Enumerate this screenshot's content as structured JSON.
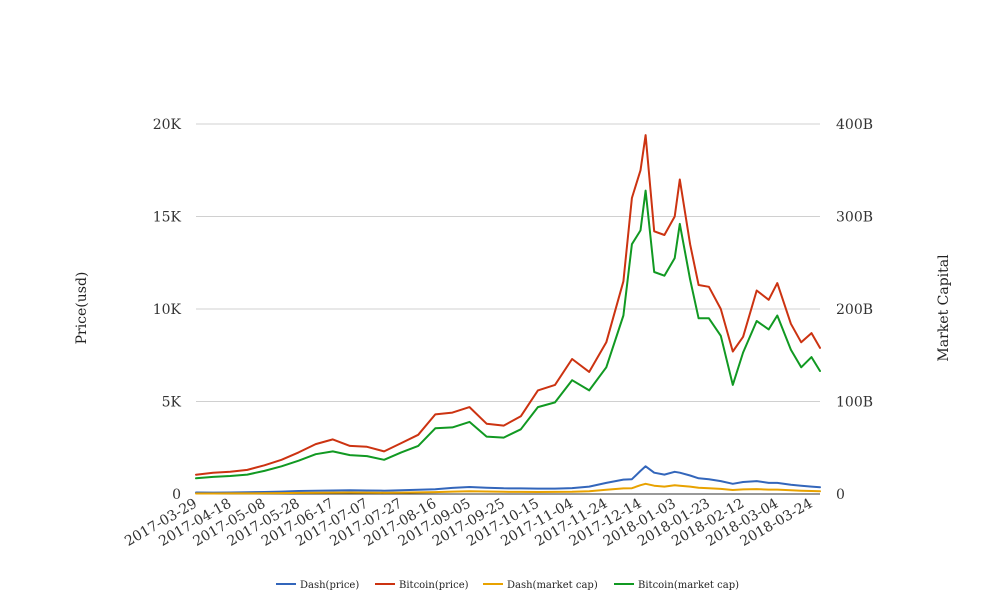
{
  "chart_data": {
    "type": "line",
    "title": "",
    "ylabel": "Price(usd)",
    "y2label": "Market Capital",
    "ylim": [
      0,
      20000
    ],
    "y2lim": [
      0,
      400000000000
    ],
    "yticks": [
      "0",
      "5K",
      "10K",
      "15K",
      "20K"
    ],
    "y2ticks": [
      "0",
      "100B",
      "200B",
      "300B",
      "400B"
    ],
    "xticks": [
      "2017-03-29",
      "2017-04-18",
      "2017-05-08",
      "2017-05-28",
      "2017-06-17",
      "2017-07-07",
      "2017-07-27",
      "2017-08-16",
      "2017-09-05",
      "2017-09-25",
      "2017-10-15",
      "2017-11-04",
      "2017-11-24",
      "2017-12-14",
      "2018-01-03",
      "2018-01-23",
      "2018-02-12",
      "2018-03-04",
      "2018-03-24"
    ],
    "grid": true,
    "legend_position": "bottom",
    "x": [
      "2017-03-29",
      "2017-04-08",
      "2017-04-18",
      "2017-04-28",
      "2017-05-08",
      "2017-05-18",
      "2017-05-28",
      "2017-06-07",
      "2017-06-17",
      "2017-06-27",
      "2017-07-07",
      "2017-07-17",
      "2017-07-27",
      "2017-08-06",
      "2017-08-16",
      "2017-08-26",
      "2017-09-05",
      "2017-09-15",
      "2017-09-25",
      "2017-10-05",
      "2017-10-15",
      "2017-10-25",
      "2017-11-04",
      "2017-11-14",
      "2017-11-24",
      "2017-12-04",
      "2017-12-09",
      "2017-12-14",
      "2017-12-17",
      "2017-12-22",
      "2017-12-28",
      "2018-01-03",
      "2018-01-06",
      "2018-01-12",
      "2018-01-17",
      "2018-01-23",
      "2018-01-30",
      "2018-02-06",
      "2018-02-12",
      "2018-02-20",
      "2018-02-27",
      "2018-03-04",
      "2018-03-12",
      "2018-03-18",
      "2018-03-24",
      "2018-03-29"
    ],
    "series": [
      {
        "name": "Dash(price)",
        "axis": "left",
        "color": "#3366bb",
        "values": [
          80,
          75,
          80,
          90,
          110,
          130,
          160,
          180,
          190,
          200,
          190,
          180,
          200,
          230,
          260,
          330,
          380,
          340,
          310,
          300,
          290,
          290,
          320,
          400,
          600,
          780,
          800,
          1250,
          1500,
          1150,
          1050,
          1200,
          1150,
          1000,
          850,
          800,
          700,
          550,
          650,
          700,
          600,
          600,
          500,
          450,
          400,
          370
        ]
      },
      {
        "name": "Bitcoin(price)",
        "axis": "left",
        "color": "#cc3311",
        "values": [
          1040,
          1150,
          1200,
          1300,
          1550,
          1850,
          2250,
          2700,
          2950,
          2600,
          2550,
          2300,
          2750,
          3200,
          4300,
          4400,
          4700,
          3800,
          3700,
          4200,
          5600,
          5900,
          7300,
          6600,
          8200,
          11500,
          16000,
          17500,
          19400,
          14200,
          14000,
          15000,
          17000,
          13500,
          11300,
          11200,
          10000,
          7700,
          8500,
          11000,
          10500,
          11400,
          9200,
          8200,
          8700,
          7900
        ]
      },
      {
        "name": "Dash(market cap)",
        "axis": "right",
        "color": "#e8a200",
        "values": [
          500000000,
          550000000,
          600000000,
          700000000,
          800000000,
          1000000000,
          1200000000,
          1400000000,
          1500000000,
          1600000000,
          1500000000,
          1400000000,
          1500000000,
          1700000000,
          2000000000,
          2600000000,
          3000000000,
          2700000000,
          2400000000,
          2300000000,
          2200000000,
          2300000000,
          2400000000,
          3000000000,
          4500000000,
          6000000000,
          6300000000,
          9500000000,
          11000000000,
          9000000000,
          8000000000,
          9500000000,
          9000000000,
          8000000000,
          6800000000,
          6200000000,
          5500000000,
          4300000000,
          5000000000,
          5300000000,
          4800000000,
          4800000000,
          4000000000,
          3600000000,
          3200000000,
          3000000000
        ]
      },
      {
        "name": "Bitcoin(market cap)",
        "axis": "right",
        "color": "#119922",
        "values": [
          17000000000,
          18500000000,
          19500000000,
          21000000000,
          25000000000,
          30000000000,
          36000000000,
          43000000000,
          46000000000,
          42000000000,
          41000000000,
          37000000000,
          45000000000,
          52000000000,
          71000000000,
          72000000000,
          78000000000,
          62000000000,
          61000000000,
          70000000000,
          94000000000,
          99000000000,
          123000000000,
          112000000000,
          137000000000,
          193000000000,
          270000000000,
          285000000000,
          328000000000,
          240000000000,
          236000000000,
          255000000000,
          292000000000,
          232000000000,
          190000000000,
          190000000000,
          171000000000,
          118000000000,
          153000000000,
          187000000000,
          178000000000,
          193000000000,
          156000000000,
          137000000000,
          148000000000,
          133000000000
        ]
      }
    ]
  }
}
